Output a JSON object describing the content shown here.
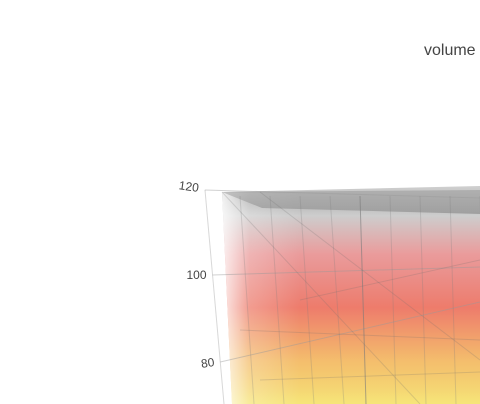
{
  "chart_data": {
    "type": "volume",
    "title": "volume",
    "axes": {
      "z": {
        "ticks": [
          120,
          100,
          80
        ]
      }
    },
    "colorscale": [
      "#f2d84a",
      "#f0a83c",
      "#e8503a",
      "#d83a3a",
      "#999999",
      "#cccccc"
    ],
    "opacity": "semi-transparent stacked isosurfaces",
    "grid": true
  }
}
